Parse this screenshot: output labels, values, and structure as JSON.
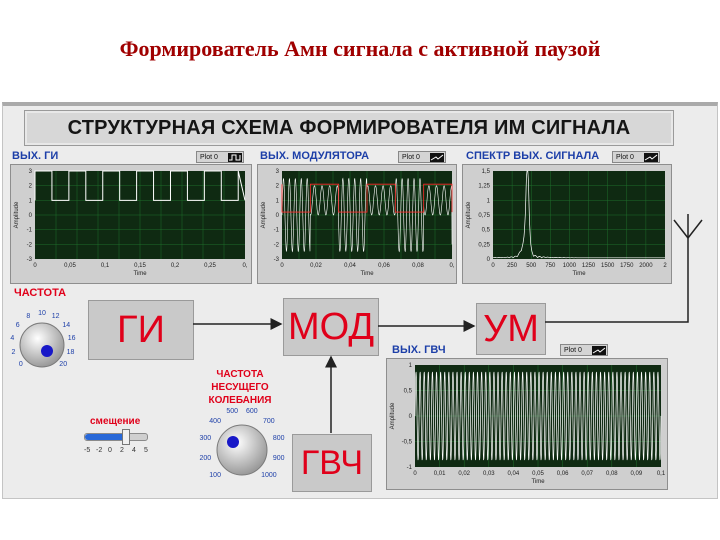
{
  "slide_title": "Формирователь Амн сигнала с активной паузой",
  "banner": "СТРУКТУРНАЯ СХЕМА ФОРМИРОВАТЕЛЯ ИМ СИГНАЛА",
  "plot_button": "Plot 0",
  "graphs": {
    "gi": {
      "label": "ВЫХ. ГИ",
      "xlabel": "Time",
      "ylabel": "Amplitude",
      "yticks": [
        "3",
        "2",
        "1",
        "0",
        "-1",
        "-2",
        "-3"
      ],
      "xticks": [
        "0",
        "0,05",
        "0,1",
        "0,15",
        "0,2",
        "0,25",
        "0,"
      ]
    },
    "mod": {
      "label": "ВЫХ. МОДУЛЯТОРА",
      "xlabel": "Time",
      "ylabel": "Amplitude",
      "yticks": [
        "3",
        "2",
        "1",
        "0",
        "-1",
        "-2",
        "-3"
      ],
      "xticks": [
        "0",
        "0,02",
        "0,04",
        "0,06",
        "0,08",
        "0,"
      ]
    },
    "spec": {
      "label": "СПЕКТР ВЫХ. СИГНАЛА",
      "xlabel": "Time",
      "ylabel": "Amplitude",
      "yticks": [
        "1,5",
        "1,25",
        "1",
        "0,75",
        "0,5",
        "0,25",
        "0"
      ],
      "xticks": [
        "0",
        "250",
        "500",
        "750",
        "1000",
        "1250",
        "1500",
        "1750",
        "2000",
        "2"
      ]
    },
    "gvch": {
      "label": "ВЫХ. ГВЧ",
      "xlabel": "Time",
      "ylabel": "Amplitude",
      "yticks": [
        "1",
        "0,5",
        "0",
        "-0,5",
        "-1"
      ],
      "xticks": [
        "0",
        "0,01",
        "0,02",
        "0,03",
        "0,04",
        "0,05",
        "0,06",
        "0,07",
        "0,08",
        "0,09",
        "0,1"
      ]
    }
  },
  "blocks": {
    "gi": "ГИ",
    "mod": "МОД",
    "um": "УМ",
    "gvch": "ГВЧ"
  },
  "knob_freq": {
    "label": "ЧАСТОТА",
    "scale": [
      "0",
      "2",
      "4",
      "6",
      "8",
      "10",
      "12",
      "14",
      "16",
      "18",
      "20"
    ]
  },
  "knob_carrier": {
    "label_lines": [
      "ЧАСТОТА",
      "НЕСУЩЕГО",
      "КОЛЕБАНИЯ"
    ],
    "scale": [
      "100",
      "200",
      "300",
      "400",
      "500",
      "600",
      "700",
      "800",
      "900",
      "1000"
    ]
  },
  "slider": {
    "label": "смещение",
    "scale": [
      "-5",
      "-2",
      "0",
      "2",
      "4",
      "5"
    ],
    "value": 2
  },
  "colors": {
    "title": "#a00000",
    "graph_label": "#1d3fa8",
    "block_text": "#e0001a",
    "plot_bg": "#0f2a12",
    "grid": "#1f6e2b"
  }
}
